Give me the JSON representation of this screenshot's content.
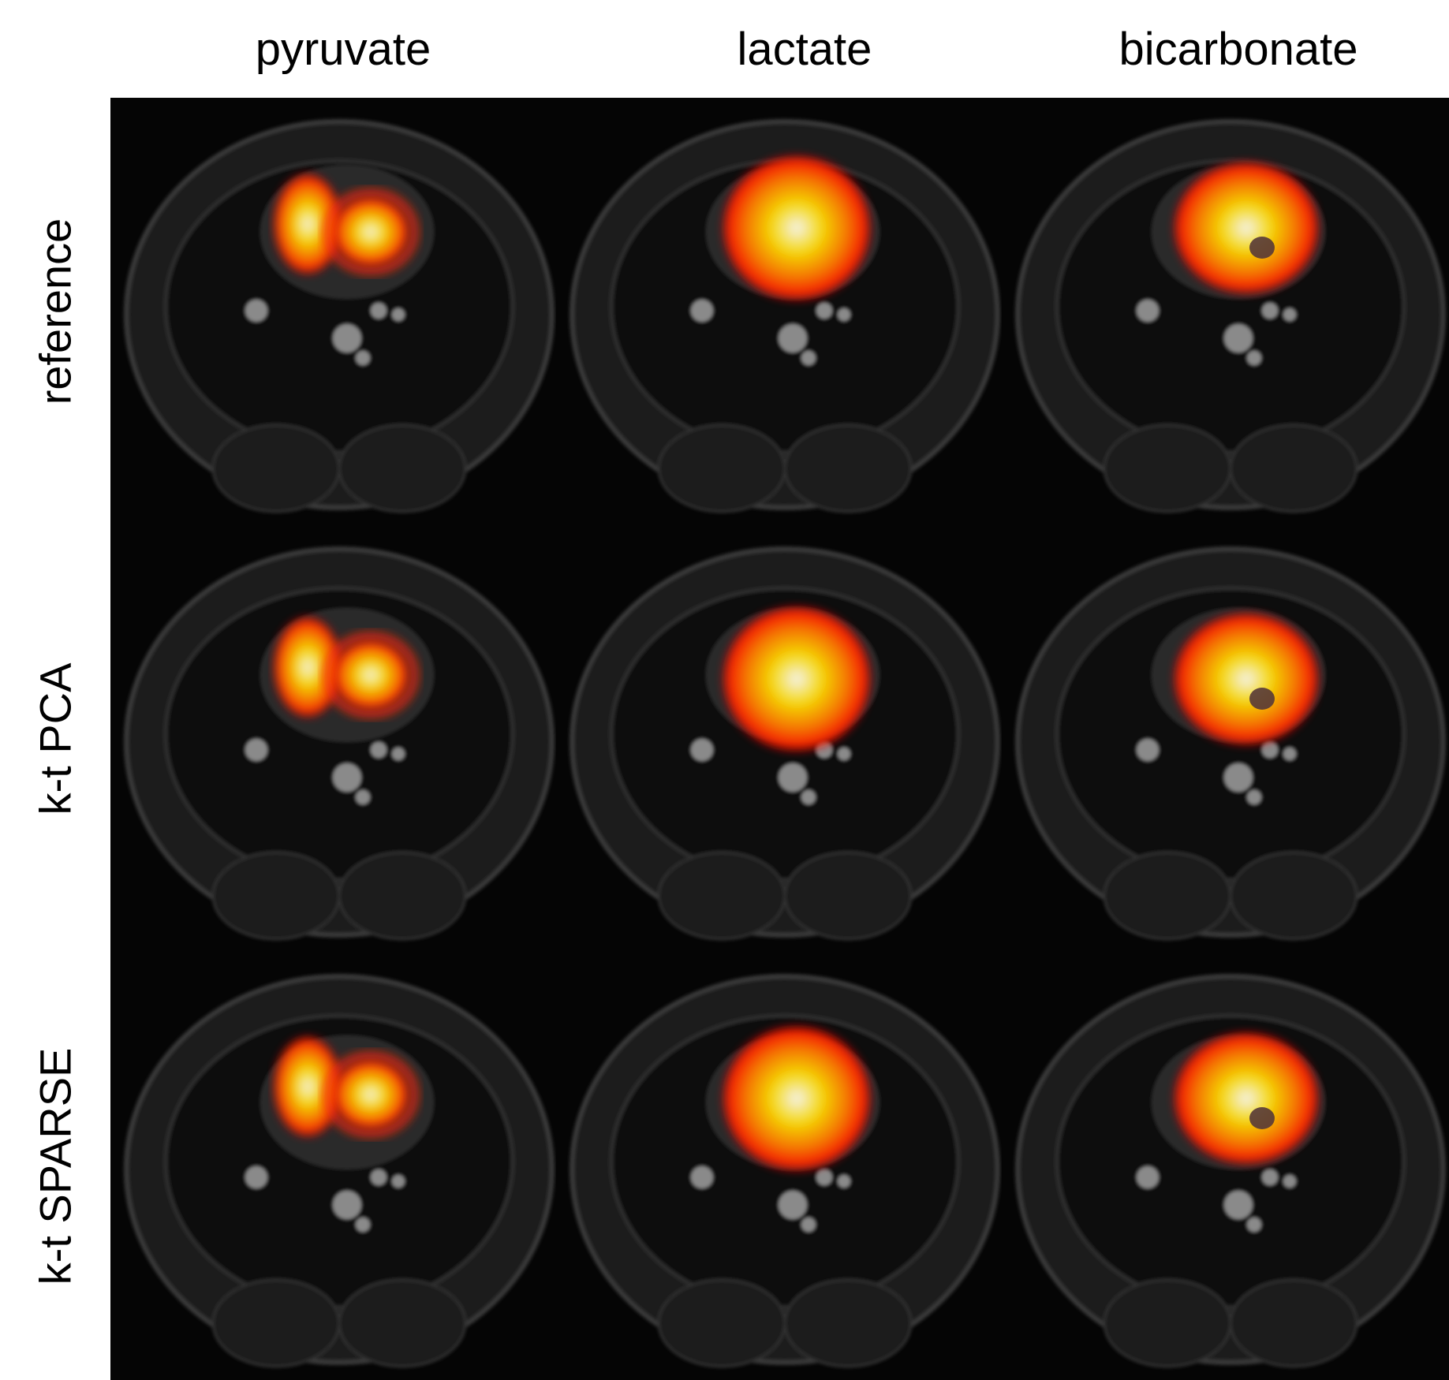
{
  "figure": {
    "columns": [
      "pyruvate",
      "lactate",
      "bicarbonate"
    ],
    "rows": [
      "reference",
      "k-t PCA",
      "k-t SPARSE"
    ],
    "background_color": "#000000",
    "overlay_colormap": [
      "#ff0000",
      "#ff7a00",
      "#ffe000",
      "#ffffff"
    ]
  }
}
